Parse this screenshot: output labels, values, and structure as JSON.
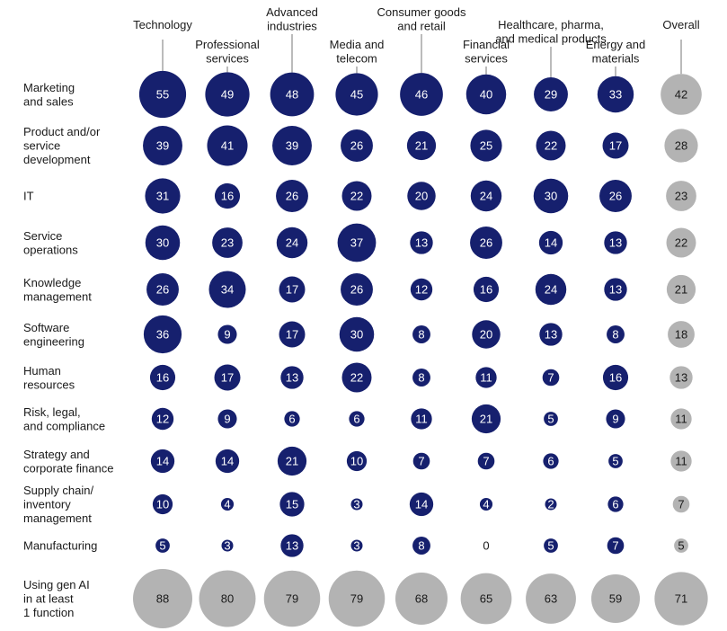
{
  "chart_data": {
    "type": "bubble-matrix",
    "title": "",
    "columns": [
      {
        "key": "technology",
        "label_lines": [
          "Technology"
        ]
      },
      {
        "key": "professional-services",
        "label_lines": [
          "Professional",
          "services"
        ]
      },
      {
        "key": "advanced-industries",
        "label_lines": [
          "Advanced",
          "industries"
        ]
      },
      {
        "key": "media-and-telecom",
        "label_lines": [
          "Media and",
          "telecom"
        ]
      },
      {
        "key": "consumer-goods-and-retail",
        "label_lines": [
          "Consumer goods",
          "and retail"
        ]
      },
      {
        "key": "financial-services",
        "label_lines": [
          "Financial",
          "services"
        ]
      },
      {
        "key": "healthcare-pharma-medical",
        "label_lines": [
          "Healthcare, pharma,",
          "and medical products"
        ]
      },
      {
        "key": "energy-and-materials",
        "label_lines": [
          "Energy and",
          "materials"
        ]
      },
      {
        "key": "overall",
        "label_lines": [
          "Overall"
        ]
      }
    ],
    "rows": [
      {
        "key": "marketing-and-sales",
        "label_lines": [
          "Marketing",
          "and sales"
        ],
        "values": [
          55,
          49,
          48,
          45,
          46,
          40,
          29,
          33,
          42
        ]
      },
      {
        "key": "product-service-development",
        "label_lines": [
          "Product and/or",
          "service",
          "development"
        ],
        "values": [
          39,
          41,
          39,
          26,
          21,
          25,
          22,
          17,
          28
        ]
      },
      {
        "key": "it",
        "label_lines": [
          "IT"
        ],
        "values": [
          31,
          16,
          26,
          22,
          20,
          24,
          30,
          26,
          23
        ]
      },
      {
        "key": "service-operations",
        "label_lines": [
          "Service",
          "operations"
        ],
        "values": [
          30,
          23,
          24,
          37,
          13,
          26,
          14,
          13,
          22
        ]
      },
      {
        "key": "knowledge-management",
        "label_lines": [
          "Knowledge",
          "management"
        ],
        "values": [
          26,
          34,
          17,
          26,
          12,
          16,
          24,
          13,
          21
        ]
      },
      {
        "key": "software-engineering",
        "label_lines": [
          "Software",
          "engineering"
        ],
        "values": [
          36,
          9,
          17,
          30,
          8,
          20,
          13,
          8,
          18
        ]
      },
      {
        "key": "human-resources",
        "label_lines": [
          "Human",
          "resources"
        ],
        "values": [
          16,
          17,
          13,
          22,
          8,
          11,
          7,
          16,
          13
        ]
      },
      {
        "key": "risk-legal-compliance",
        "label_lines": [
          "Risk, legal,",
          "and compliance"
        ],
        "values": [
          12,
          9,
          6,
          6,
          11,
          21,
          5,
          9,
          11
        ]
      },
      {
        "key": "strategy-corporate-finance",
        "label_lines": [
          "Strategy and",
          "corporate finance"
        ],
        "values": [
          14,
          14,
          21,
          10,
          7,
          7,
          6,
          5,
          11
        ]
      },
      {
        "key": "supply-chain-inventory",
        "label_lines": [
          "Supply chain/",
          "inventory",
          "management"
        ],
        "values": [
          10,
          4,
          15,
          3,
          14,
          4,
          2,
          6,
          7
        ]
      },
      {
        "key": "manufacturing",
        "label_lines": [
          "Manufacturing"
        ],
        "values": [
          5,
          3,
          13,
          3,
          8,
          0,
          5,
          7,
          5
        ]
      },
      {
        "key": "using-gen-ai-at-least-1-function",
        "label_lines": [
          "Using gen AI",
          "in at least",
          "1 function"
        ],
        "values": [
          88,
          80,
          79,
          79,
          68,
          65,
          63,
          59,
          71
        ]
      }
    ],
    "colors": {
      "industry_bubble": "#16206e",
      "industry_text": "#ffffff",
      "overall_bubble": "#b3b3b3",
      "overall_text": "#1a1a1a",
      "connector": "#777777",
      "label_text": "#1a1a1a"
    }
  }
}
